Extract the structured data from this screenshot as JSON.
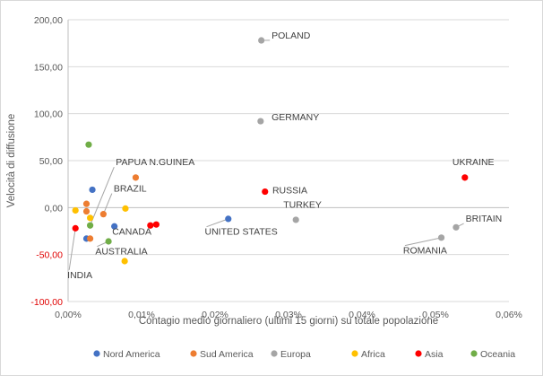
{
  "chart_data": {
    "type": "scatter",
    "title": "",
    "xlabel": "Contagio medio giornaliero (ultimi 15 giorni) su totale popolazione",
    "ylabel": "Velocità di diffusione",
    "xlim": [
      0,
      0.06
    ],
    "ylim": [
      -100,
      200
    ],
    "x_ticks": [
      0,
      0.01,
      0.02,
      0.03,
      0.04,
      0.05,
      0.06
    ],
    "x_tick_labels": [
      "0,00%",
      "0,01%",
      "0,02%",
      "0,03%",
      "0,04%",
      "0,05%",
      "0,06%"
    ],
    "y_ticks": [
      -100,
      -50,
      0,
      50,
      100,
      150,
      200
    ],
    "y_tick_labels": [
      "-100,00",
      "-50,00",
      "0,00",
      "50,00",
      "100,00",
      "150,00",
      "200,00"
    ],
    "grid": "horizontal",
    "legend_position": "bottom",
    "series": [
      {
        "name": "Nord America",
        "color": "#4472c4",
        "points": [
          [
            0.0033,
            19
          ],
          [
            0.0025,
            -33
          ],
          [
            0.0063,
            -20
          ],
          [
            0.0218,
            -12
          ]
        ]
      },
      {
        "name": "Sud America",
        "color": "#ed7d31",
        "points": [
          [
            0.0092,
            32
          ],
          [
            0.0025,
            4
          ],
          [
            0.0025,
            -4
          ],
          [
            0.0048,
            -7
          ],
          [
            0.003,
            -33
          ]
        ]
      },
      {
        "name": "Europa",
        "color": "#a5a5a5",
        "points": [
          [
            0.0263,
            178
          ],
          [
            0.0262,
            92
          ],
          [
            0.031,
            -13
          ],
          [
            0.0508,
            -32
          ],
          [
            0.0528,
            -21
          ]
        ]
      },
      {
        "name": "Africa",
        "color": "#ffc000",
        "points": [
          [
            0.001,
            -3
          ],
          [
            0.003,
            -11
          ],
          [
            0.0078,
            -1
          ],
          [
            0.0077,
            -57
          ]
        ]
      },
      {
        "name": "Asia",
        "color": "#ff0000",
        "points": [
          [
            0.0268,
            17
          ],
          [
            0.0112,
            -19
          ],
          [
            0.012,
            -18
          ],
          [
            0.001,
            -22
          ],
          [
            0.054,
            32
          ]
        ]
      },
      {
        "name": "Oceania",
        "color": "#70ad47",
        "points": [
          [
            0.0028,
            67
          ],
          [
            0.003,
            -19
          ],
          [
            0.0055,
            -36
          ]
        ]
      }
    ],
    "annotations": [
      {
        "text": "POLAND",
        "x": 0.0263,
        "y": 178,
        "label_x": 0.0277,
        "label_y": 180,
        "leader": true
      },
      {
        "text": "GERMANY",
        "x": 0.0262,
        "y": 92,
        "label_x": 0.0277,
        "label_y": 93,
        "leader": false
      },
      {
        "text": "UKRAINE",
        "x": 0.054,
        "y": 32,
        "label_x": 0.0523,
        "label_y": 45,
        "leader": false
      },
      {
        "text": "RUSSIA",
        "x": 0.0268,
        "y": 17,
        "label_x": 0.0278,
        "label_y": 15,
        "leader": false
      },
      {
        "text": "TURKEY",
        "x": 0.031,
        "y": -13,
        "label_x": 0.0293,
        "label_y": 0,
        "leader": false
      },
      {
        "text": "BRITAIN",
        "x": 0.0528,
        "y": -21,
        "label_x": 0.0541,
        "label_y": -15,
        "leader": true
      },
      {
        "text": "ROMANIA",
        "x": 0.0508,
        "y": -32,
        "label_x": 0.0456,
        "label_y": -49,
        "leader": true
      },
      {
        "text": "UNITED STATES",
        "x": 0.0218,
        "y": -12,
        "label_x": 0.0186,
        "label_y": -29,
        "leader": true
      },
      {
        "text": "PAPUA N.GUINEA",
        "x": 0.003,
        "y": -19,
        "label_x": 0.0065,
        "label_y": 45,
        "leader": true
      },
      {
        "text": "BRAZIL",
        "x": 0.0048,
        "y": -7,
        "label_x": 0.0062,
        "label_y": 17,
        "leader": true
      },
      {
        "text": "CANADA",
        "x": 0.0063,
        "y": -20,
        "label_x": 0.006,
        "label_y": -29,
        "leader": true
      },
      {
        "text": "AUSTRALIA",
        "x": 0.0055,
        "y": -36,
        "label_x": 0.0037,
        "label_y": -50,
        "leader": true
      },
      {
        "text": "INDIA",
        "x": 0.001,
        "y": -22,
        "label_x": -0.0001,
        "label_y": -75,
        "leader": true
      }
    ]
  }
}
